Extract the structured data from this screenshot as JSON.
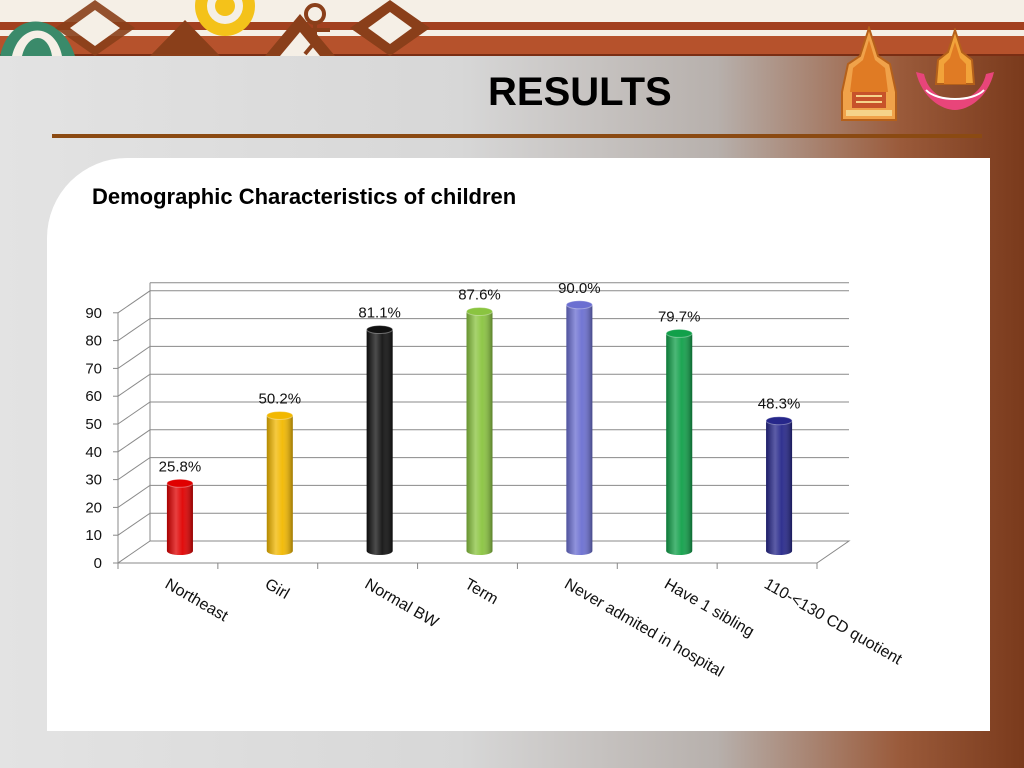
{
  "page_title": "RESULTS",
  "subtitle": "Demographic Characteristics of children",
  "colors": {
    "title_rule": "#8b4a12",
    "band": "#b6522c"
  },
  "logos": [
    {
      "icon": "university-emblem-icon"
    },
    {
      "icon": "faculty-emblem-icon"
    }
  ],
  "chart_data": {
    "type": "bar",
    "categories": [
      "Northeast",
      "Girl",
      "Normal BW",
      "Term",
      "Never admited in hospital",
      "Have 1 sibling",
      "110-<130 CD quotient"
    ],
    "values": [
      25.8,
      50.2,
      81.1,
      87.6,
      90.0,
      79.7,
      48.3
    ],
    "value_labels": [
      "25.8%",
      "50.2%",
      "81.1%",
      "87.6%",
      "90.0%",
      "79.7%",
      "48.3%"
    ],
    "bar_colors": [
      "#e00000",
      "#f2b800",
      "#111111",
      "#8ac440",
      "#6b6fd1",
      "#11a04a",
      "#26278a"
    ],
    "yticks": [
      "0",
      "10",
      "20",
      "30",
      "40",
      "50",
      "60",
      "70",
      "80",
      "90"
    ],
    "ylim": [
      0,
      100
    ],
    "grid": true,
    "style": "3d-cylinder",
    "title": "",
    "xlabel": "",
    "ylabel": ""
  }
}
